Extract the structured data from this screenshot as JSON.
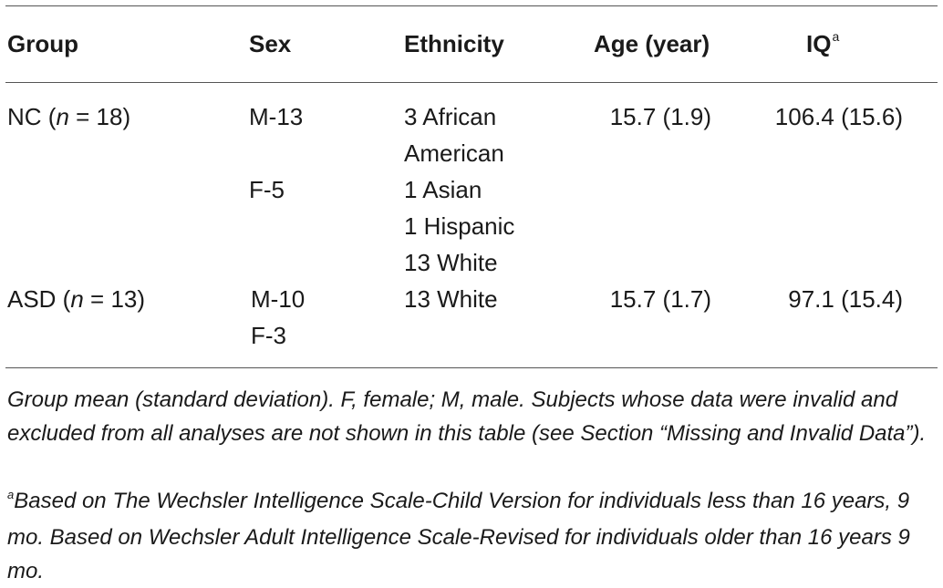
{
  "table": {
    "headers": {
      "group": "Group",
      "sex": "Sex",
      "ethnicity": "Ethnicity",
      "age": "Age (year)",
      "iq": "IQ",
      "iq_sup": "a"
    },
    "rows": [
      {
        "group_label": "NC (",
        "group_n": "n",
        "group_count": " = 18)",
        "sex": [
          "M-13",
          "F-5"
        ],
        "ethnicity": [
          "3 African",
          "American",
          "1 Asian",
          "1 Hispanic",
          "13 White"
        ],
        "age": "15.7 (1.9)",
        "iq": "106.4 (15.6)"
      },
      {
        "group_label": "ASD (",
        "group_n": "n",
        "group_count": " = 13)",
        "sex": [
          "M-10",
          "F-3"
        ],
        "ethnicity": [
          "13 White"
        ],
        "age": "15.7 (1.7)",
        "iq": "97.1 (15.4)"
      }
    ]
  },
  "footnotes": {
    "note1": "Group mean (standard deviation). F, female; M, male. Subjects whose data were invalid and excluded from all analyses are not shown in this table (see Section “Missing and Invalid Data”).",
    "note2_sup": "a",
    "note2": "Based on The Wechsler Intelligence Scale-Child Version for individuals less than 16 years, 9 mo. Based on Wechsler Adult Intelligence Scale-Revised for individuals older than 16 years 9 mo."
  }
}
